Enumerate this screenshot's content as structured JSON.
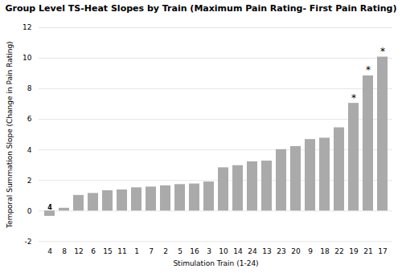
{
  "chart_data": {
    "type": "bar",
    "title": "Group Level TS-Heat Slopes by Train (Maximum Pain Rating- First Pain Rating)",
    "xlabel": "Stimulation Train (1-24)",
    "ylabel": "Temporal Summation Slope (Change in Pain Rating)",
    "categories": [
      "4",
      "8",
      "12",
      "6",
      "15",
      "11",
      "1",
      "7",
      "2",
      "5",
      "16",
      "3",
      "10",
      "14",
      "24",
      "13",
      "23",
      "20",
      "9",
      "18",
      "22",
      "19",
      "21",
      "17"
    ],
    "values": [
      -0.35,
      0.18,
      1.02,
      1.15,
      1.33,
      1.38,
      1.52,
      1.57,
      1.65,
      1.73,
      1.77,
      1.9,
      2.83,
      2.97,
      3.22,
      3.27,
      4.02,
      4.22,
      4.68,
      4.77,
      5.45,
      7.05,
      8.85,
      10.08
    ],
    "color": "#aaaaaa",
    "ylim": [
      -2,
      12
    ],
    "yticks": [
      -2,
      0,
      2,
      4,
      6,
      8,
      10,
      12
    ],
    "grid": true,
    "annotations": [
      {
        "text": "*",
        "category": "19"
      },
      {
        "text": "*",
        "category": "21"
      },
      {
        "text": "*",
        "category": "17"
      },
      {
        "text": "4",
        "category": "4",
        "y": 0.08
      }
    ]
  }
}
